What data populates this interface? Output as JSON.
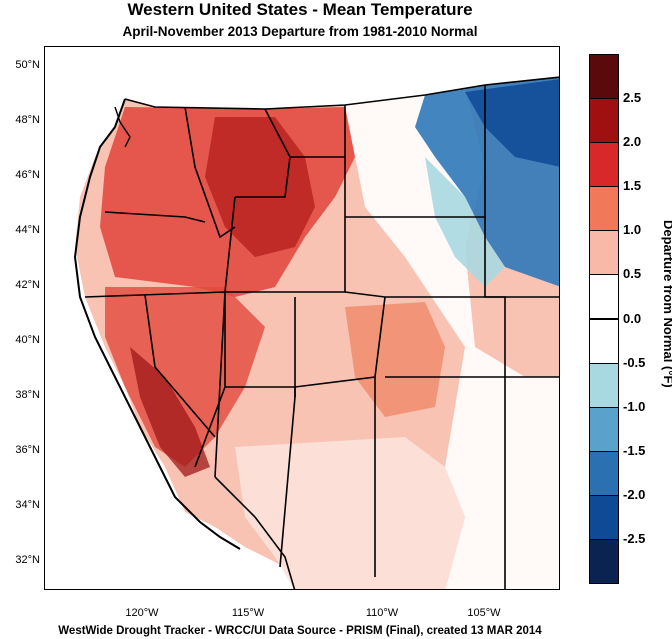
{
  "title": "Western United States - Mean Temperature",
  "subtitle": "April-November 2013  Departure from 1981-2010 Normal",
  "footer": "WestWide Drought Tracker - WRCC/UI  Data Source - PRISM (Final), created 13 MAR 2014",
  "legend": {
    "title": "Departure from Normal (°F)",
    "labels": [
      "2.5",
      "2.0",
      "1.5",
      "1.0",
      "0.5",
      "0.0",
      "-0.5",
      "-1.0",
      "-1.5",
      "-2.0",
      "-2.5"
    ],
    "colors": [
      "#5a0a0a",
      "#a01010",
      "#d8282a",
      "#f2785a",
      "#f8b9a8",
      "#ffffff",
      "#ffffff",
      "#a8d8e0",
      "#5aa2cc",
      "#2b70b0",
      "#0e4a96",
      "#0a2350"
    ]
  },
  "chart_data": {
    "type": "map",
    "latitude_ticks": [
      "50°N",
      "48°N",
      "46°N",
      "44°N",
      "42°N",
      "40°N",
      "38°N",
      "36°N",
      "34°N",
      "32°N"
    ],
    "longitude_ticks": [
      "120°W",
      "115°W",
      "110°W",
      "105°W"
    ],
    "region": "Western United States"
  }
}
